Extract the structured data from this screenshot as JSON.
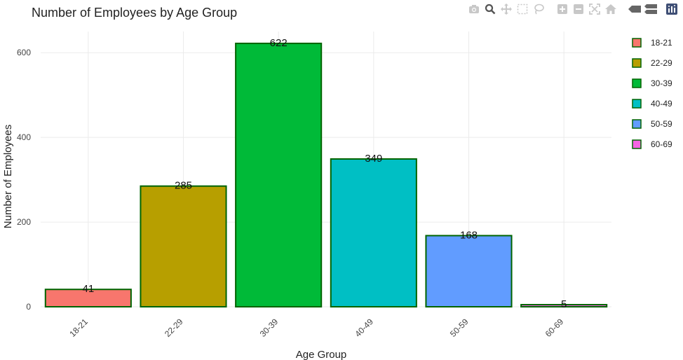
{
  "chart_data": {
    "type": "bar",
    "title": "Number of Employees by Age Group",
    "xlabel": "Age Group",
    "ylabel": "Number of Employees",
    "categories": [
      "18-21",
      "22-29",
      "30-39",
      "40-49",
      "50-59",
      "60-69"
    ],
    "values": [
      41,
      285,
      622,
      349,
      168,
      5
    ],
    "colors": [
      "#F8766D",
      "#B79F00",
      "#00BA38",
      "#00BFC4",
      "#619CFF",
      "#F564E3"
    ],
    "bar_outline_color": "#006400",
    "ylim": [
      0,
      650
    ],
    "yticks": [
      0,
      200,
      400,
      600
    ],
    "grid": true,
    "legend": {
      "position": "right",
      "entries": [
        "18-21",
        "22-29",
        "30-39",
        "40-49",
        "50-59",
        "60-69"
      ]
    }
  },
  "toolbar": {
    "icons": [
      "camera-icon",
      "zoom-icon",
      "pan-icon",
      "box-select-icon",
      "lasso-select-icon",
      "zoom-in-icon",
      "zoom-out-icon",
      "autoscale-icon",
      "reset-axes-icon",
      "hover-closest-icon",
      "hover-compare-icon",
      "plotly-logo-icon"
    ]
  }
}
